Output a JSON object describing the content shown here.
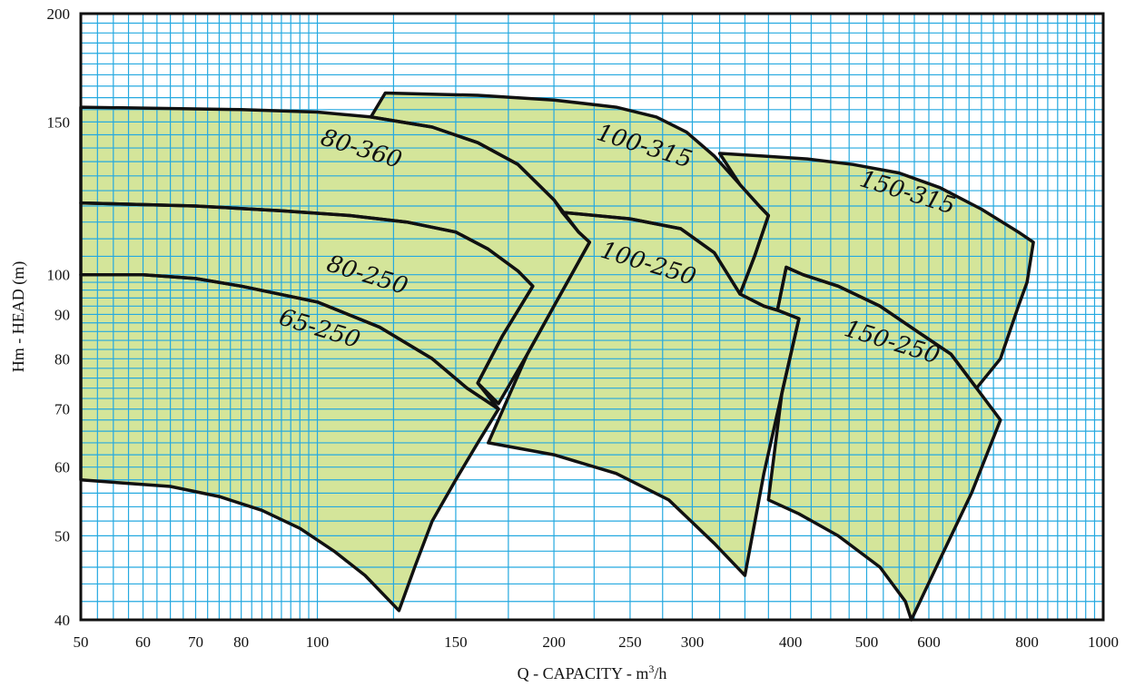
{
  "chart_data": {
    "type": "area",
    "title": "",
    "xlabel": "Q - CAPACITY - m",
    "xlabel_sup": "3",
    "xlabel_suffix": "/h",
    "ylabel": "Hm - HEAD (m)",
    "xscale": "log",
    "yscale": "log",
    "xlim": [
      50,
      1000
    ],
    "ylim": [
      40,
      200
    ],
    "xticks": [
      50,
      60,
      70,
      80,
      100,
      150,
      200,
      250,
      300,
      400,
      500,
      600,
      800,
      1000
    ],
    "yticks": [
      40,
      50,
      60,
      70,
      80,
      90,
      100,
      150,
      200
    ],
    "grid": true,
    "colors": {
      "fill": "#d4e59a",
      "grid": "#25a9e0",
      "outline": "#111111",
      "frame": "#111111"
    },
    "series": [
      {
        "name": "65-250",
        "label_at": [
          100,
          85
        ],
        "label_angle": 17,
        "polygon": [
          [
            50,
            100
          ],
          [
            60,
            100
          ],
          [
            70,
            99
          ],
          [
            80,
            97
          ],
          [
            100,
            93
          ],
          [
            120,
            87
          ],
          [
            140,
            80
          ],
          [
            155,
            74
          ],
          [
            170,
            70
          ],
          [
            160,
            64
          ],
          [
            150,
            58
          ],
          [
            140,
            52
          ],
          [
            133,
            46
          ],
          [
            127,
            41
          ],
          [
            115,
            45
          ],
          [
            105,
            48
          ],
          [
            95,
            51
          ],
          [
            85,
            53.5
          ],
          [
            75,
            55.5
          ],
          [
            65,
            57
          ],
          [
            50,
            58
          ]
        ]
      },
      {
        "name": "80-250",
        "label_at": [
          115,
          98
        ],
        "label_angle": 17,
        "polygon": [
          [
            50,
            121
          ],
          [
            70,
            120
          ],
          [
            90,
            118.5
          ],
          [
            110,
            117
          ],
          [
            130,
            115
          ],
          [
            150,
            112
          ],
          [
            165,
            107
          ],
          [
            180,
            101
          ],
          [
            188,
            97
          ],
          [
            172,
            85
          ],
          [
            160,
            75
          ],
          [
            170,
            70
          ],
          [
            155,
            74
          ],
          [
            140,
            80
          ],
          [
            120,
            87
          ],
          [
            100,
            93
          ],
          [
            80,
            97
          ],
          [
            70,
            99
          ],
          [
            60,
            100
          ],
          [
            50,
            100
          ]
        ]
      },
      {
        "name": "80-360",
        "label_at": [
          113,
          137
        ],
        "label_angle": 17,
        "polygon": [
          [
            50,
            156
          ],
          [
            80,
            155
          ],
          [
            100,
            154
          ],
          [
            117,
            152
          ],
          [
            140,
            148
          ],
          [
            160,
            142
          ],
          [
            180,
            134
          ],
          [
            200,
            122
          ],
          [
            215,
            112
          ],
          [
            222,
            109
          ],
          [
            200,
            92
          ],
          [
            185,
            81
          ],
          [
            170,
            71
          ],
          [
            160,
            75
          ],
          [
            172,
            85
          ],
          [
            188,
            97
          ],
          [
            180,
            101
          ],
          [
            165,
            107
          ],
          [
            150,
            112
          ],
          [
            130,
            115
          ],
          [
            110,
            117
          ],
          [
            90,
            118.5
          ],
          [
            70,
            120
          ],
          [
            50,
            121
          ]
        ]
      },
      {
        "name": "100-315",
        "label_at": [
          259,
          138
        ],
        "label_angle": 17,
        "polygon": [
          [
            117,
            152
          ],
          [
            122,
            162
          ],
          [
            160,
            161
          ],
          [
            200,
            159
          ],
          [
            240,
            156
          ],
          [
            270,
            152
          ],
          [
            295,
            146
          ],
          [
            320,
            137
          ],
          [
            345,
            127
          ],
          [
            365,
            120
          ],
          [
            375,
            117
          ],
          [
            360,
            105
          ],
          [
            345,
            95
          ],
          [
            320,
            106
          ],
          [
            290,
            113
          ],
          [
            250,
            116
          ],
          [
            205,
            118
          ],
          [
            200,
            122
          ],
          [
            180,
            134
          ],
          [
            160,
            142
          ],
          [
            140,
            148
          ]
        ]
      },
      {
        "name": "100-250",
        "label_at": [
          262,
          101
        ],
        "label_angle": 17,
        "polygon": [
          [
            205,
            118
          ],
          [
            250,
            116
          ],
          [
            290,
            113
          ],
          [
            320,
            106
          ],
          [
            345,
            95
          ],
          [
            370,
            92
          ],
          [
            385,
            91
          ],
          [
            410,
            89
          ],
          [
            390,
            73
          ],
          [
            370,
            59
          ],
          [
            350,
            45
          ],
          [
            320,
            49
          ],
          [
            280,
            55
          ],
          [
            240,
            59
          ],
          [
            200,
            62
          ],
          [
            165,
            64
          ],
          [
            185,
            81
          ],
          [
            200,
            92
          ],
          [
            222,
            109
          ],
          [
            215,
            112
          ]
        ]
      },
      {
        "name": "150-315",
        "label_at": [
          560,
          122
        ],
        "label_angle": 17,
        "polygon": [
          [
            325,
            138
          ],
          [
            370,
            137
          ],
          [
            420,
            136
          ],
          [
            480,
            134
          ],
          [
            550,
            131
          ],
          [
            620,
            126
          ],
          [
            700,
            119
          ],
          [
            780,
            112
          ],
          [
            815,
            109
          ],
          [
            800,
            98
          ],
          [
            780,
            92
          ],
          [
            740,
            80
          ],
          [
            690,
            74
          ],
          [
            640,
            81
          ],
          [
            580,
            86
          ],
          [
            520,
            92
          ],
          [
            460,
            97
          ],
          [
            415,
            100
          ],
          [
            395,
            102
          ],
          [
            385,
            91
          ],
          [
            370,
            92
          ],
          [
            345,
            95
          ],
          [
            360,
            105
          ],
          [
            375,
            117
          ],
          [
            365,
            120
          ],
          [
            345,
            127
          ],
          [
            325,
            138
          ]
        ]
      },
      {
        "name": "150-250",
        "label_at": [
          535,
          82
        ],
        "label_angle": 17,
        "polygon": [
          [
            385,
            91
          ],
          [
            395,
            102
          ],
          [
            415,
            100
          ],
          [
            460,
            97
          ],
          [
            520,
            92
          ],
          [
            580,
            86
          ],
          [
            640,
            81
          ],
          [
            690,
            74
          ],
          [
            740,
            68
          ],
          [
            680,
            56
          ],
          [
            620,
            47
          ],
          [
            570,
            40
          ],
          [
            560,
            42
          ],
          [
            520,
            46
          ],
          [
            460,
            50
          ],
          [
            410,
            53
          ],
          [
            375,
            55
          ],
          [
            390,
            73
          ],
          [
            410,
            89
          ]
        ]
      }
    ]
  }
}
